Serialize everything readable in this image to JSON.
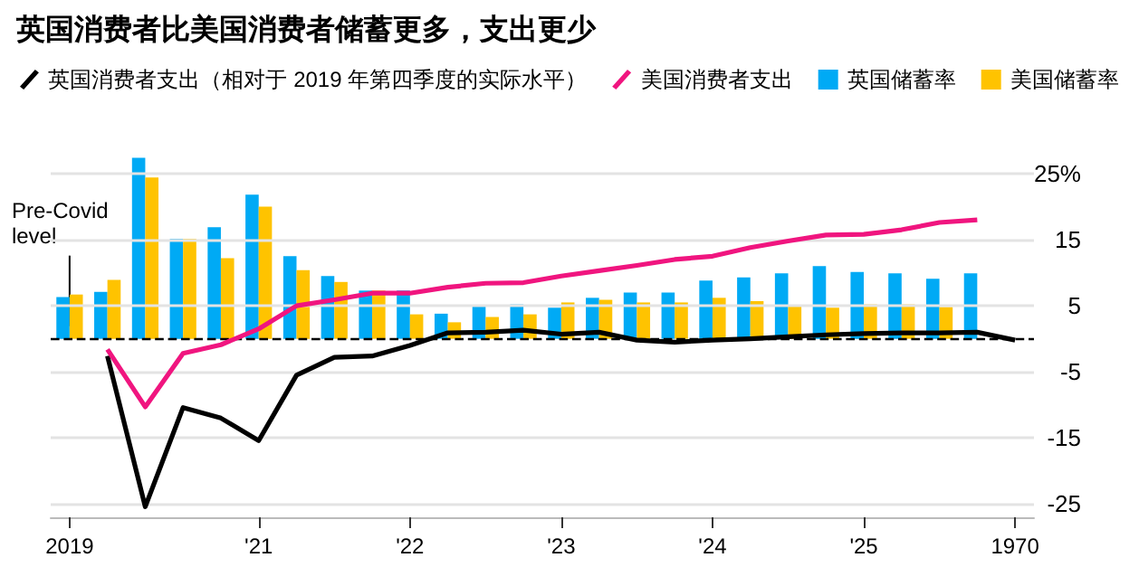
{
  "chart_data": {
    "type": "bar",
    "title": "英国消费者比美国消费者储蓄更多，支出更少",
    "categories": [
      "2019",
      null,
      null,
      null,
      null,
      "'21",
      null,
      null,
      null,
      "'22",
      null,
      null,
      null,
      "'23",
      null,
      null,
      null,
      "'24",
      null,
      null,
      null,
      "'25",
      null,
      null,
      null,
      "1970"
    ],
    "series": [
      {
        "name": "英国消费者支出（相对于 2019 年第四季度的实际水平）",
        "type": "line",
        "color": "#000000",
        "values": [
          null,
          -2.6,
          -25.4,
          -10.4,
          -12.0,
          -15.4,
          -5.5,
          -2.8,
          -2.6,
          -1.0,
          0.9,
          1.0,
          1.3,
          0.7,
          1.0,
          -0.2,
          -0.5,
          -0.2,
          0.0,
          0.3,
          0.6,
          0.8,
          0.9,
          0.9,
          1.0,
          -0.2
        ]
      },
      {
        "name": "美国消费者支出",
        "type": "line",
        "color": "#f0157f",
        "values": [
          null,
          -1.6,
          -10.3,
          -2.2,
          -0.9,
          1.5,
          5.0,
          5.9,
          6.9,
          6.9,
          7.8,
          8.4,
          8.5,
          9.5,
          10.3,
          11.1,
          12.0,
          12.5,
          13.8,
          14.8,
          15.7,
          15.8,
          16.5,
          17.6,
          18.0,
          null
        ]
      },
      {
        "name": "英国储蓄率",
        "color": "#00aaf5",
        "values": [
          6.3,
          7.1,
          27.4,
          15.1,
          16.9,
          21.8,
          12.5,
          9.5,
          7.3,
          7.3,
          3.8,
          5.0,
          5.2,
          4.7,
          6.2,
          7.0,
          7.0,
          8.8,
          9.3,
          9.9,
          11.0,
          10.1,
          9.9,
          9.1,
          9.9,
          null
        ]
      },
      {
        "name": "美国储蓄率",
        "color": "#ffc300",
        "values": [
          6.7,
          8.9,
          24.4,
          15.1,
          12.2,
          20.0,
          10.4,
          8.6,
          7.3,
          3.7,
          2.5,
          3.3,
          3.7,
          5.5,
          5.9,
          5.5,
          5.5,
          6.2,
          5.7,
          5.0,
          4.7,
          5.2,
          5.2,
          4.8,
          null,
          null
        ]
      }
    ],
    "ylim": [
      -27,
      28
    ],
    "yticks": [
      {
        "value": 25,
        "label": "25%"
      },
      15,
      5,
      -5,
      -15,
      -25
    ],
    "grid": "y",
    "legend": "top left",
    "marker": "none",
    "ref_lines": [
      {
        "axis": "y",
        "value": 0,
        "label": "Pre-Covid level",
        "line_style": "dashed",
        "color": "#000000"
      }
    ]
  }
}
